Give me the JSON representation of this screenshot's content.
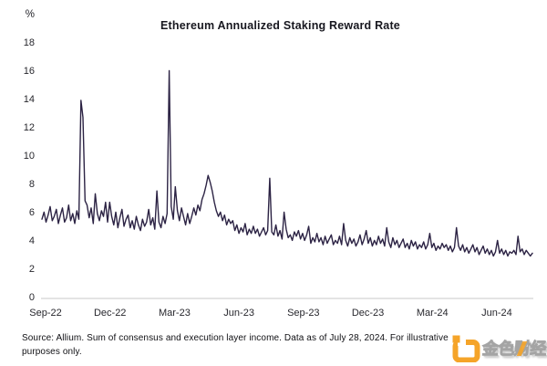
{
  "footer": {
    "line1": "Source: Allium. Sum of consensus and execution layer income. Data as of July 28, 2024. For illustrative",
    "line2": "purposes only."
  },
  "watermark": {
    "brand_text": "金色财经",
    "logo_icon": "jinse-coin-logo",
    "logo_color": "#F5A01E"
  },
  "chart_data": {
    "type": "line",
    "title": "Ethereum Annualized Staking Reward Rate",
    "unit_label": "%",
    "xlabel": "",
    "ylabel": "",
    "ylim": [
      0,
      18
    ],
    "y_ticks": [
      0,
      2,
      4,
      6,
      8,
      10,
      12,
      14,
      16,
      18
    ],
    "x_tick_labels": [
      "Sep-22",
      "Dec-22",
      "Mar-23",
      "Jun-23",
      "Sep-23",
      "Dec-23",
      "Mar-24",
      "Jun-24"
    ],
    "grid": false,
    "legend_position": "none",
    "line_color": "#2C2344",
    "axis_color": "#C9C9C9",
    "values": [
      5.6,
      6.1,
      5.4,
      5.9,
      6.5,
      5.5,
      5.8,
      6.3,
      5.3,
      5.9,
      6.4,
      5.4,
      5.7,
      6.6,
      5.5,
      6.0,
      5.3,
      6.2,
      5.6,
      14.0,
      12.8,
      6.9,
      6.6,
      5.7,
      6.4,
      5.3,
      7.4,
      6.0,
      5.5,
      6.2,
      5.8,
      6.8,
      5.4,
      6.8,
      5.8,
      5.2,
      6.1,
      5.0,
      5.7,
      6.3,
      5.1,
      5.6,
      5.9,
      5.0,
      5.5,
      4.9,
      5.8,
      5.2,
      4.8,
      5.6,
      5.1,
      5.4,
      6.3,
      5.2,
      5.7,
      4.9,
      7.6,
      5.4,
      5.0,
      5.8,
      5.3,
      6.0,
      16.1,
      6.5,
      5.6,
      7.9,
      6.2,
      5.5,
      6.4,
      5.8,
      5.2,
      6.0,
      5.3,
      5.8,
      6.4,
      5.9,
      6.6,
      6.2,
      7.0,
      7.4,
      8.0,
      8.7,
      8.2,
      7.6,
      6.8,
      6.2,
      5.8,
      6.1,
      5.5,
      5.9,
      5.2,
      5.6,
      5.3,
      5.5,
      4.8,
      5.2,
      4.6,
      5.0,
      4.7,
      5.3,
      4.5,
      4.9,
      4.6,
      5.1,
      4.6,
      4.9,
      4.4,
      4.7,
      5.0,
      4.5,
      4.8,
      8.5,
      4.7,
      4.5,
      5.2,
      4.4,
      4.8,
      4.2,
      6.1,
      4.9,
      4.3,
      4.5,
      4.1,
      4.7,
      4.4,
      4.8,
      4.2,
      4.6,
      4.1,
      4.5,
      5.1,
      3.9,
      4.3,
      4.0,
      4.6,
      4.0,
      4.3,
      3.8,
      4.4,
      3.9,
      4.2,
      4.5,
      3.8,
      4.1,
      3.9,
      4.4,
      3.8,
      5.3,
      4.1,
      3.7,
      4.3,
      3.9,
      4.2,
      3.7,
      4.0,
      4.5,
      3.8,
      4.2,
      4.8,
      3.9,
      4.3,
      3.7,
      4.1,
      3.8,
      4.4,
      3.9,
      4.2,
      3.7,
      5.0,
      4.0,
      3.6,
      4.3,
      3.8,
      4.1,
      3.6,
      3.9,
      4.2,
      3.6,
      3.9,
      3.5,
      4.1,
      3.7,
      4.0,
      3.5,
      3.8,
      3.6,
      4.0,
      3.5,
      3.8,
      4.6,
      3.6,
      3.9,
      3.4,
      3.7,
      3.5,
      3.9,
      3.6,
      3.8,
      3.4,
      3.7,
      3.3,
      3.6,
      5.0,
      3.7,
      3.4,
      3.8,
      3.3,
      3.6,
      3.2,
      3.5,
      3.8,
      3.3,
      3.6,
      3.1,
      3.4,
      3.7,
      3.2,
      3.5,
      3.1,
      3.4,
      3.0,
      3.3,
      4.1,
      3.2,
      3.5,
      3.1,
      3.4,
      3.0,
      3.3,
      3.2,
      3.4,
      3.1,
      4.4,
      3.3,
      3.5,
      3.1,
      3.4,
      3.2,
      3.0,
      3.2
    ]
  }
}
